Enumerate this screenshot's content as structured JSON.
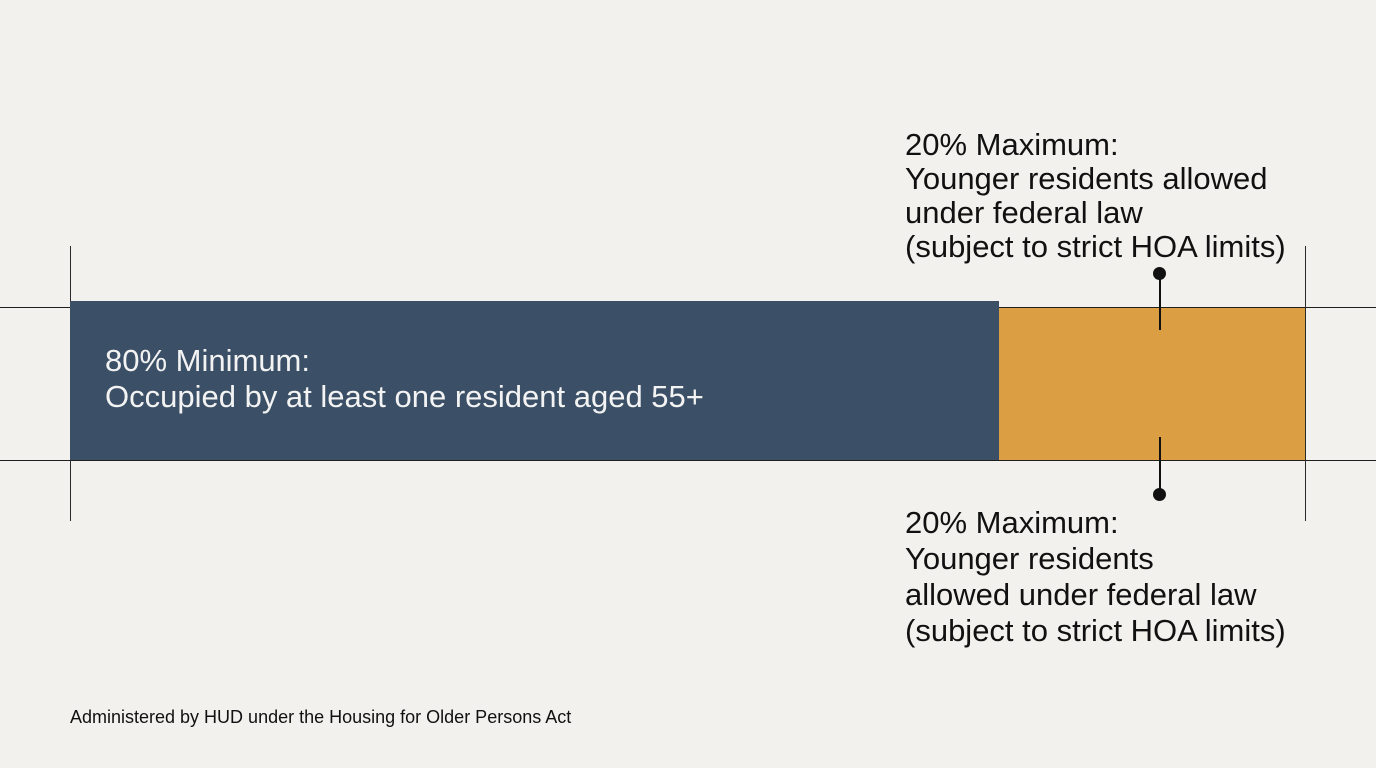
{
  "colors": {
    "minimum_segment": "#3b5066",
    "maximum_segment": "#dc9e42",
    "background": "#f2f1ed"
  },
  "segments": {
    "minimum": {
      "share_percent": 80,
      "heading": "80% Minimum:",
      "description": "Occupied by at least one resident aged 55+"
    },
    "maximum": {
      "share_percent": 20
    }
  },
  "callouts": {
    "top": {
      "lines": [
        "20% Maximum:",
        "Younger residents allowed",
        "under federal law",
        "(subject to strict HOA limits)"
      ]
    },
    "bottom": {
      "lines": [
        "20% Maximum:",
        "Younger residents",
        "allowed under federal law",
        "(subject to strict HOA limits)"
      ]
    }
  },
  "footnote": "Administered by HUD under the Housing for Older Persons Act"
}
